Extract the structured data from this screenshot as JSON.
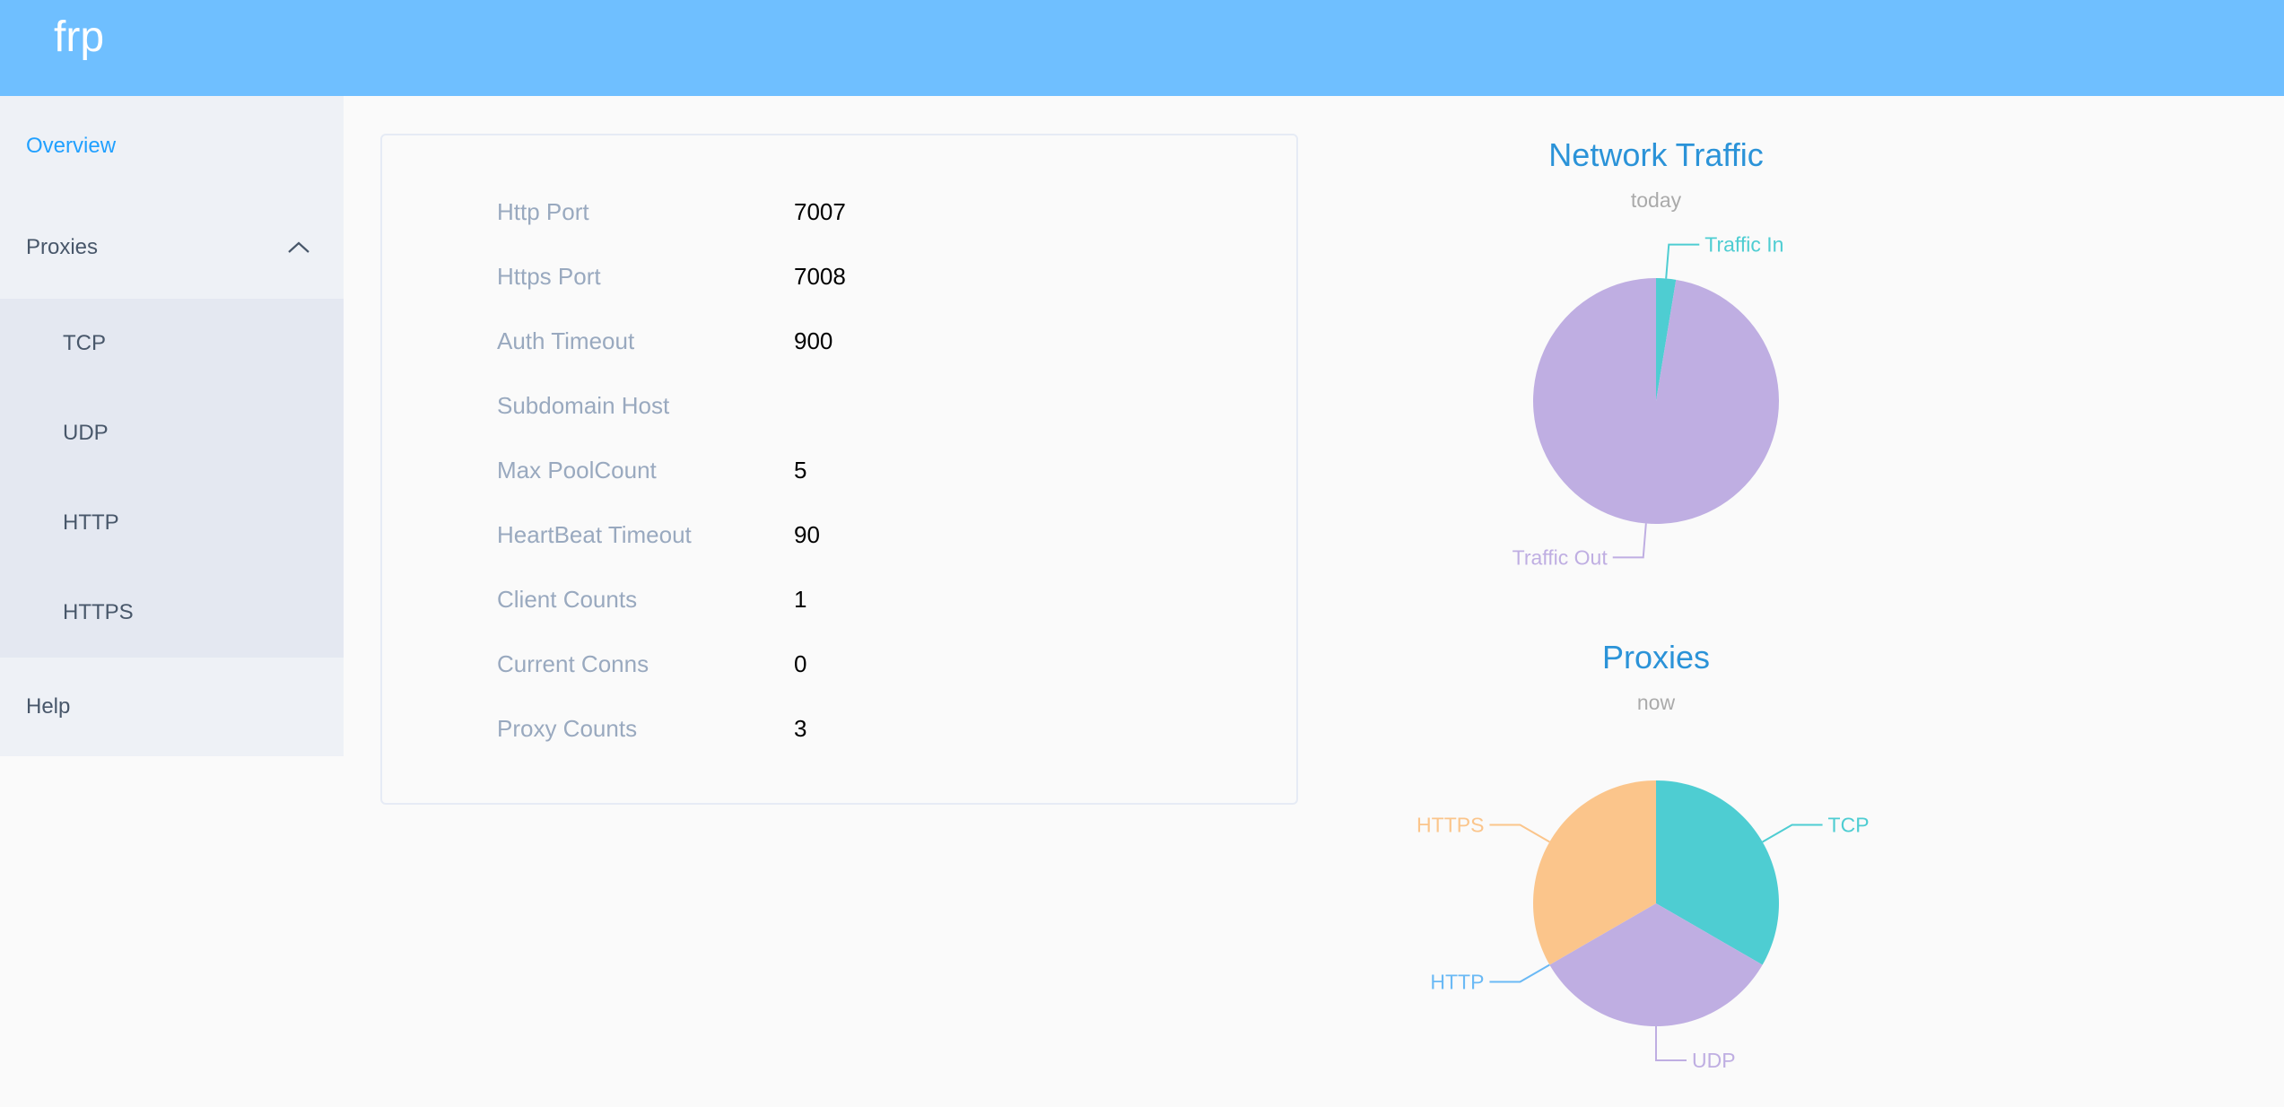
{
  "header": {
    "title": "frp",
    "color": "#6fbfff"
  },
  "sidebar": {
    "items": [
      {
        "label": "Overview",
        "active": true
      },
      {
        "label": "Proxies",
        "expanded": true,
        "icon": "chevron-up-icon"
      },
      {
        "label": "Help"
      }
    ],
    "proxy_submenu": [
      "TCP",
      "UDP",
      "HTTP",
      "HTTPS"
    ]
  },
  "server_info": [
    {
      "label": "Http Port",
      "value": "7007"
    },
    {
      "label": "Https Port",
      "value": "7008"
    },
    {
      "label": "Auth Timeout",
      "value": "900"
    },
    {
      "label": "Subdomain Host",
      "value": ""
    },
    {
      "label": "Max PoolCount",
      "value": "5"
    },
    {
      "label": "HeartBeat Timeout",
      "value": "90"
    },
    {
      "label": "Client Counts",
      "value": "1"
    },
    {
      "label": "Current Conns",
      "value": "0"
    },
    {
      "label": "Proxy Counts",
      "value": "3"
    }
  ],
  "chart_data": [
    {
      "type": "pie",
      "title": "Network Traffic",
      "subtitle": "today",
      "categories": [
        "Traffic In",
        "Traffic Out"
      ],
      "values": [
        2.6,
        97.4
      ],
      "colors": [
        "#4ecdd2",
        "#bfaee2"
      ]
    },
    {
      "type": "pie",
      "title": "Proxies",
      "subtitle": "now",
      "categories": [
        "TCP",
        "UDP",
        "HTTP",
        "HTTPS"
      ],
      "values": [
        1,
        1,
        0,
        1
      ],
      "colors": [
        "#4ecdd2",
        "#bfaee2",
        "#6ab9f5",
        "#fbc58b"
      ]
    }
  ]
}
